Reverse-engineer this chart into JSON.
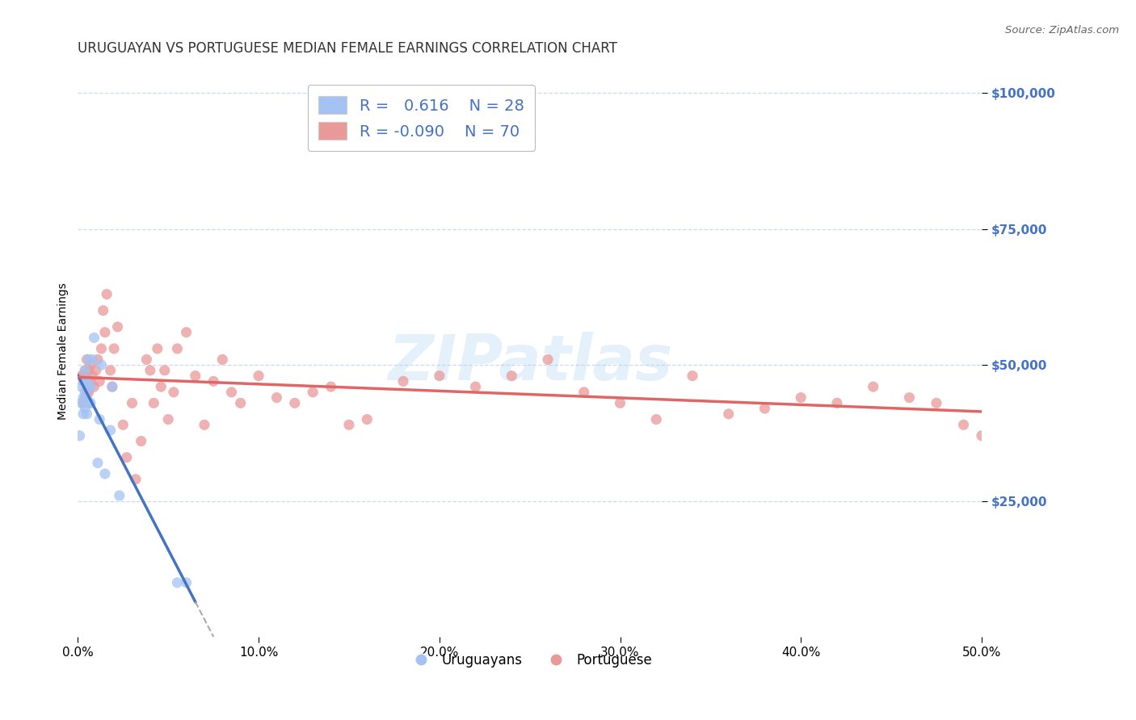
{
  "title": "URUGUAYAN VS PORTUGUESE MEDIAN FEMALE EARNINGS CORRELATION CHART",
  "source": "Source: ZipAtlas.com",
  "ylabel": "Median Female Earnings",
  "yticks": [
    25000,
    50000,
    75000,
    100000
  ],
  "ytick_labels": [
    "$25,000",
    "$50,000",
    "$75,000",
    "$100,000"
  ],
  "watermark": "ZIPatlas",
  "legend": {
    "uruguayan_R": "0.616",
    "uruguayan_N": "28",
    "portuguese_R": "-0.090",
    "portuguese_N": "70"
  },
  "uruguayan_color": "#a4c2f4",
  "portuguese_color": "#ea9999",
  "uruguayan_line_color": "#4472c4",
  "portuguese_line_color": "#e06666",
  "background_color": "#ffffff",
  "grid_color": "#c9daf8",
  "uruguayan_x": [
    0.001,
    0.002,
    0.002,
    0.003,
    0.003,
    0.003,
    0.004,
    0.004,
    0.004,
    0.005,
    0.005,
    0.005,
    0.006,
    0.006,
    0.006,
    0.007,
    0.007,
    0.008,
    0.009,
    0.011,
    0.012,
    0.013,
    0.015,
    0.018,
    0.019,
    0.023,
    0.055,
    0.06
  ],
  "uruguayan_y": [
    37000,
    43000,
    46000,
    41000,
    44000,
    47000,
    42000,
    45000,
    49000,
    41000,
    44000,
    47000,
    43000,
    46000,
    51000,
    43000,
    46000,
    51000,
    55000,
    32000,
    40000,
    50000,
    30000,
    38000,
    46000,
    26000,
    10000,
    10000
  ],
  "portuguese_x": [
    0.002,
    0.003,
    0.003,
    0.004,
    0.004,
    0.005,
    0.005,
    0.006,
    0.006,
    0.007,
    0.007,
    0.008,
    0.009,
    0.01,
    0.011,
    0.012,
    0.013,
    0.014,
    0.015,
    0.016,
    0.018,
    0.019,
    0.02,
    0.022,
    0.025,
    0.027,
    0.03,
    0.032,
    0.035,
    0.038,
    0.04,
    0.042,
    0.044,
    0.046,
    0.048,
    0.05,
    0.053,
    0.055,
    0.06,
    0.065,
    0.07,
    0.075,
    0.08,
    0.085,
    0.09,
    0.1,
    0.11,
    0.12,
    0.13,
    0.14,
    0.15,
    0.16,
    0.18,
    0.2,
    0.22,
    0.24,
    0.26,
    0.28,
    0.3,
    0.32,
    0.34,
    0.36,
    0.38,
    0.4,
    0.42,
    0.44,
    0.46,
    0.475,
    0.49,
    0.5
  ],
  "portuguese_y": [
    48000,
    43000,
    48000,
    44000,
    49000,
    45000,
    51000,
    45000,
    49000,
    47000,
    50000,
    48000,
    46000,
    49000,
    51000,
    47000,
    53000,
    60000,
    56000,
    63000,
    49000,
    46000,
    53000,
    57000,
    39000,
    33000,
    43000,
    29000,
    36000,
    51000,
    49000,
    43000,
    53000,
    46000,
    49000,
    40000,
    45000,
    53000,
    56000,
    48000,
    39000,
    47000,
    51000,
    45000,
    43000,
    48000,
    44000,
    43000,
    45000,
    46000,
    39000,
    40000,
    47000,
    48000,
    46000,
    48000,
    51000,
    45000,
    43000,
    40000,
    48000,
    41000,
    42000,
    44000,
    43000,
    46000,
    44000,
    43000,
    39000,
    37000
  ],
  "xlim": [
    0,
    0.5
  ],
  "ylim": [
    0,
    105000
  ],
  "xticks": [
    0.0,
    0.1,
    0.2,
    0.3,
    0.4,
    0.5
  ],
  "xtick_labels": [
    "0.0%",
    "10.0%",
    "20.0%",
    "30.0%",
    "40.0%",
    "50.0%"
  ],
  "title_fontsize": 12,
  "axis_label_fontsize": 10,
  "tick_fontsize": 11,
  "ytick_color": "#4472c4"
}
